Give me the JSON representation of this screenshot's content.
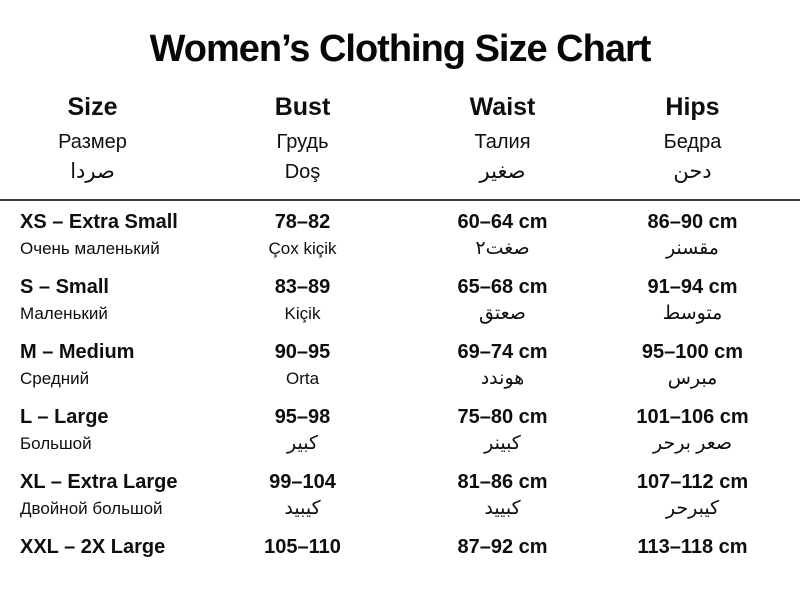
{
  "title": "Women’s Clothing Size Chart",
  "header": {
    "columns": [
      {
        "en": "Size",
        "ru": "Размер",
        "ar": "صردا"
      },
      {
        "en": "Bust",
        "ru": "Грудь",
        "ar": "Doş"
      },
      {
        "en": "Waist",
        "ru": "Талия",
        "ar": "صغير"
      },
      {
        "en": "Hips",
        "ru": "Бедра",
        "ar": "دحن"
      }
    ]
  },
  "rows": [
    {
      "size": "XS – Extra Small",
      "size_sub": "Очень маленький",
      "bust": "78–82",
      "bust_sub": "Çox kiçik",
      "waist": "60–64 cm",
      "waist_sub": "صغت٢",
      "hips": "86–90 cm",
      "hips_sub": "مقسنر"
    },
    {
      "size": "S – Small",
      "size_sub": "Маленький",
      "bust": "83–89",
      "bust_sub": "Kiçik",
      "waist": "65–68 cm",
      "waist_sub": "صعتق",
      "hips": "91–94 cm",
      "hips_sub": "متوسط"
    },
    {
      "size": "M – Medium",
      "size_sub": "Средний",
      "bust": "90–95",
      "bust_sub": "Orta",
      "waist": "69–74 cm",
      "waist_sub": "هوندد",
      "hips": "95–100 cm",
      "hips_sub": "مبرس"
    },
    {
      "size": "L – Large",
      "size_sub": "Большой",
      "bust": "95–98",
      "bust_sub": "كبير",
      "waist": "75–80 cm",
      "waist_sub": "كبينر",
      "hips": "101–106 cm",
      "hips_sub": "صعر برحر"
    },
    {
      "size": "XL – Extra Large",
      "size_sub": "Двойной большой",
      "bust": "99–104",
      "bust_sub": "كيبيد",
      "waist": "81–86 cm",
      "waist_sub": "كبييد",
      "hips": "107–112 cm",
      "hips_sub": "كيبرحر"
    },
    {
      "size": "XXL – 2X Large",
      "size_sub": "",
      "bust": "105–110",
      "bust_sub": "",
      "waist": "87–92 cm",
      "waist_sub": "",
      "hips": "113–118 cm",
      "hips_sub": ""
    }
  ],
  "colors": {
    "background": "#ffffff",
    "text": "#0e0e0e",
    "divider": "#3c3c3c"
  },
  "chart_data": {
    "type": "table",
    "title": "Women’s Clothing Size Chart",
    "column_headers": [
      [
        "Size",
        "Размер",
        "صردا"
      ],
      [
        "Bust",
        "Грудь",
        "Doş"
      ],
      [
        "Waist",
        "Талия",
        "صغير"
      ],
      [
        "Hips",
        "Бедра",
        "دحن"
      ]
    ],
    "rows": [
      [
        [
          "XS – Extra Small",
          "Очень маленький"
        ],
        [
          "78–82",
          "Çox kiçik"
        ],
        [
          "60–64 cm",
          "صغت٢"
        ],
        [
          "86–90 cm",
          "مقسنر"
        ]
      ],
      [
        [
          "S – Small",
          "Маленький"
        ],
        [
          "83–89",
          "Kiçik"
        ],
        [
          "65–68 cm",
          "صعتق"
        ],
        [
          "91–94 cm",
          "متوسط"
        ]
      ],
      [
        [
          "M – Medium",
          "Средний"
        ],
        [
          "90–95",
          "Orta"
        ],
        [
          "69–74 cm",
          "هوندد"
        ],
        [
          "95–100 cm",
          "مبرس"
        ]
      ],
      [
        [
          "L – Large",
          "Большой"
        ],
        [
          "95–98",
          "كبير"
        ],
        [
          "75–80 cm",
          "كبينر"
        ],
        [
          "101–106 cm",
          "صعر برحر"
        ]
      ],
      [
        [
          "XL – Extra Large",
          "Двойной большой"
        ],
        [
          "99–104",
          "كيبيد"
        ],
        [
          "81–86 cm",
          "كبييد"
        ],
        [
          "107–112 cm",
          "كيبرحر"
        ]
      ],
      [
        [
          "XXL – 2X Large",
          ""
        ],
        [
          "105–110",
          ""
        ],
        [
          "87–92 cm",
          ""
        ],
        [
          "113–118 cm",
          ""
        ]
      ]
    ],
    "layout": {
      "header_divider": true,
      "first_column_align": "left",
      "other_columns_align": "center"
    }
  }
}
